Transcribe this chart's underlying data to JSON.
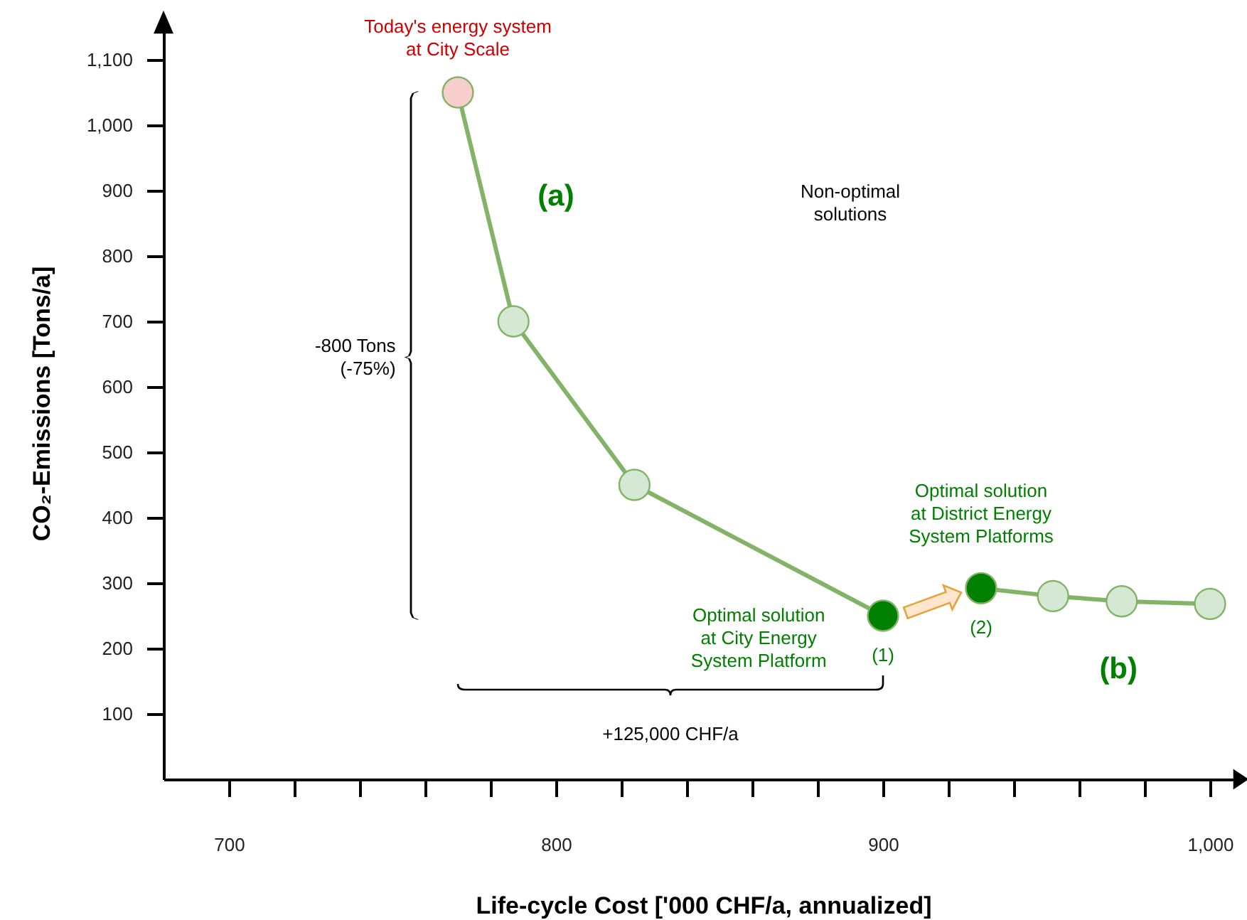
{
  "chart_data": {
    "type": "line",
    "xlabel": "Life-cycle Cost ['000 CHF/a, annualized]",
    "ylabel": "CO₂-Emissions [Tons/a]",
    "xlim": [
      680,
      1010
    ],
    "ylim": [
      0,
      1150
    ],
    "xticks": [
      {
        "value": 700,
        "label": "700"
      },
      {
        "value": 720,
        "label": null
      },
      {
        "value": 740,
        "label": null
      },
      {
        "value": 760,
        "label": null
      },
      {
        "value": 780,
        "label": null
      },
      {
        "value": 800,
        "label": "800"
      },
      {
        "value": 820,
        "label": null
      },
      {
        "value": 840,
        "label": null
      },
      {
        "value": 860,
        "label": null
      },
      {
        "value": 880,
        "label": null
      },
      {
        "value": 900,
        "label": "900"
      },
      {
        "value": 920,
        "label": null
      },
      {
        "value": 940,
        "label": null
      },
      {
        "value": 960,
        "label": null
      },
      {
        "value": 980,
        "label": null
      },
      {
        "value": 1000,
        "label": "1,000"
      }
    ],
    "yticks": [
      100,
      200,
      300,
      400,
      500,
      600,
      700,
      800,
      900,
      {
        "value": 1000,
        "label": "1,000"
      },
      {
        "value": 1100,
        "label": "1,100"
      }
    ],
    "grid": false,
    "marker": "circle",
    "line_style": "solid",
    "series": [
      {
        "color": "#82b366",
        "x": [
          770,
          787,
          824,
          900
        ],
        "values": [
          1050,
          700,
          450,
          250
        ],
        "colors": [
          "#f8cecc",
          "#d5e8d4",
          "#d5e8d4",
          "#008000"
        ]
      },
      {
        "color": "#82b366",
        "x": [
          930,
          952,
          973,
          1000
        ],
        "values": [
          292,
          280,
          272,
          268
        ],
        "colors": [
          "#008000",
          "#d5e8d4",
          "#d5e8d4",
          "#d5e8d4"
        ]
      }
    ],
    "annotations": [
      "Today's energy system\nat City Scale",
      "(a)",
      "Non-optimal\nsolutions",
      "-800 Tons\n(-75%)",
      "Optimal solution\nat City Energy\nSystem Platform",
      {
        "text": "(1)",
        "x": 900,
        "y": 250
      },
      {
        "text": "(2)",
        "x": 930,
        "y": 292
      },
      "Optimal solution\nat District Energy\nSystem Platforms",
      "(b)",
      "+125,000 CHF/a"
    ]
  }
}
